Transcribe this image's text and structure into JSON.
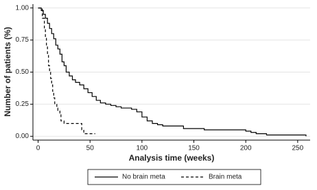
{
  "chart_data": {
    "type": "step",
    "xlabel": "Analysis time (weeks)",
    "ylabel": "Number of patients (%)",
    "xlim": [
      -5,
      262
    ],
    "ylim": [
      -0.03,
      1.03
    ],
    "xticks": [
      0,
      50,
      100,
      150,
      200,
      250
    ],
    "yticks": [
      {
        "value": 0,
        "label": "0.00"
      },
      {
        "value": 0.25,
        "label": "0.25"
      },
      {
        "value": 0.5,
        "label": "0.50"
      },
      {
        "value": 0.75,
        "label": "0.75"
      },
      {
        "value": 1,
        "label": "1.00"
      }
    ],
    "grid": true,
    "series": [
      {
        "name": "No brain meta",
        "color": "#000000",
        "dash": "solid",
        "x": [
          0,
          3,
          5,
          7,
          9,
          11,
          13,
          15,
          17,
          19,
          21,
          23,
          25,
          27,
          30,
          33,
          36,
          40,
          44,
          48,
          52,
          56,
          60,
          65,
          70,
          75,
          80,
          90,
          95,
          100,
          105,
          110,
          115,
          120,
          140,
          160,
          200,
          205,
          210,
          220,
          240,
          258
        ],
        "values": [
          1.0,
          0.98,
          0.95,
          0.92,
          0.88,
          0.84,
          0.8,
          0.76,
          0.71,
          0.68,
          0.64,
          0.58,
          0.55,
          0.5,
          0.47,
          0.44,
          0.42,
          0.4,
          0.37,
          0.34,
          0.31,
          0.28,
          0.26,
          0.25,
          0.24,
          0.23,
          0.22,
          0.21,
          0.19,
          0.15,
          0.12,
          0.1,
          0.09,
          0.08,
          0.06,
          0.05,
          0.04,
          0.03,
          0.02,
          0.01,
          0.01,
          0.0
        ]
      },
      {
        "name": "Brain meta",
        "color": "#000000",
        "dash": "dashed",
        "x": [
          0,
          4,
          6,
          7,
          8,
          9,
          10,
          11,
          12,
          13,
          14,
          15,
          16,
          18,
          19,
          21,
          22,
          25,
          35,
          42,
          44,
          46,
          50,
          55
        ],
        "values": [
          1.0,
          0.92,
          0.84,
          0.77,
          0.7,
          0.63,
          0.55,
          0.5,
          0.45,
          0.4,
          0.35,
          0.3,
          0.25,
          0.22,
          0.2,
          0.18,
          0.12,
          0.1,
          0.1,
          0.05,
          0.02,
          0.02,
          0.02,
          0.02
        ]
      }
    ]
  }
}
